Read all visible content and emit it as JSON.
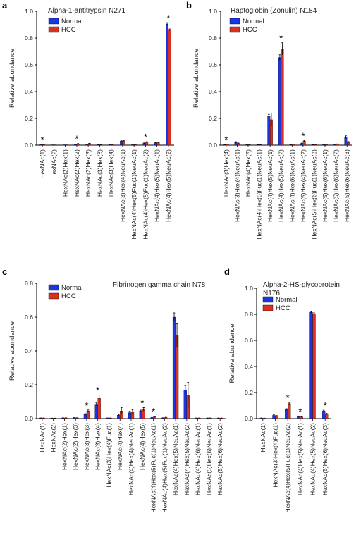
{
  "colors": {
    "normal": "#1a35e6",
    "hcc": "#d9301f",
    "axis": "#000000",
    "error": "#000000"
  },
  "chart_data": [
    {
      "letter": "a",
      "type": "bar",
      "title": [
        "Alpha-1-antitrypsin N271"
      ],
      "ylabel": "Relative abundance",
      "ylim": [
        0,
        1.0
      ],
      "yticks": [
        "0.0",
        "0.2",
        "0.4",
        "0.6",
        "0.8",
        "1.0"
      ],
      "legend": {
        "placement": "top-left",
        "entries": [
          "Normal",
          "HCC"
        ]
      },
      "categories": [
        "HexNAc(1)",
        "HexNAc(2)",
        "HexNAc(2)Hex(1)",
        "HexNAc(2)Hex(2)",
        "HexNAc(2)Hex(3)",
        "HexNAc(3)Hex(3)",
        "HexNAc(3)Hex(4)",
        "HexNAc(3)Hex(4)NeuAc(1)",
        "HexNAc(4)Hex(5)Fuc(1)NeuAc(1)",
        "HexNAc(4)Hex(5)Fuc(1)NeuAc(2)",
        "HexNAc(4)Hex(5)NeuAc(1)",
        "HexNAc(4)Hex(5)NeuAc(2)"
      ],
      "series": [
        {
          "name": "Normal",
          "values": [
            0.004,
            0.001,
            0.001,
            0.005,
            0.005,
            0.003,
            0.004,
            0.03,
            0.004,
            0.014,
            0.017,
            0.905
          ],
          "errors": [
            0.002,
            0,
            0,
            0.001,
            0.001,
            0.001,
            0.001,
            0.003,
            0.001,
            0.003,
            0.003,
            0.01
          ]
        },
        {
          "name": "HCC",
          "values": [
            0.004,
            0.001,
            0.001,
            0.01,
            0.012,
            0.003,
            0.004,
            0.034,
            0.004,
            0.022,
            0.02,
            0.862
          ],
          "errors": [
            0.002,
            0,
            0,
            0.002,
            0.002,
            0.001,
            0.001,
            0.004,
            0.001,
            0.004,
            0.003,
            0.006
          ]
        }
      ],
      "stars": [
        "HexNAc(1)",
        "HexNAc(2)Hex(2)",
        "HexNAc(4)Hex(5)Fuc(1)NeuAc(2)",
        "HexNAc(4)Hex(5)NeuAc(2)"
      ]
    },
    {
      "letter": "b",
      "type": "bar",
      "title": [
        "Haptoglobin (Zonulin) N184"
      ],
      "ylabel": "Relative abundance",
      "ylim": [
        0,
        1.0
      ],
      "yticks": [
        "0.0",
        "0.2",
        "0.4",
        "0.6",
        "0.8",
        "1.0"
      ],
      "legend": {
        "placement": "top-left",
        "entries": [
          "Normal",
          "HCC"
        ]
      },
      "categories": [
        "HexNAc(3)Hex(4)",
        "HexNAc(3)Hex(4)NeuAc(1)",
        "HexNAc(4)Hex(5)",
        "HexNAc(4)Hex(5)Fuc(1)NeuAc(1)",
        "HexNAc(4)Hex(5)NeuAc(1)",
        "HexNAc(4)Hex(5)NeuAc(2)",
        "HexNAc(4)Hex(6)NeuAc(1)",
        "HexNAc(5)Hex(4)NeuAc(2)",
        "HexNAc(5)Hex(6)Fuc(1)NeuAc(3)",
        "HexNAc(5)Hex(6)NeuAc(1)",
        "HexNAc(5)Hex(6)NeuAc(2)",
        "HexNAc(5)Hex(6)NeuAc(3)"
      ],
      "series": [
        {
          "name": "Normal",
          "values": [
            0.003,
            0.02,
            0.003,
            0.003,
            0.215,
            0.655,
            0.003,
            0.012,
            0.003,
            0.004,
            0.005,
            0.06
          ],
          "errors": [
            0.001,
            0.006,
            0.001,
            0.001,
            0.015,
            0.02,
            0.001,
            0.003,
            0.001,
            0.001,
            0.001,
            0.01
          ]
        },
        {
          "name": "HCC",
          "values": [
            0.006,
            0.012,
            0.003,
            0.003,
            0.19,
            0.72,
            0.006,
            0.03,
            0.004,
            0.005,
            0.007,
            0.022
          ],
          "errors": [
            0.002,
            0.004,
            0.001,
            0.001,
            0.05,
            0.045,
            0.002,
            0.005,
            0.001,
            0.001,
            0.002,
            0.005
          ]
        }
      ],
      "stars": [
        "HexNAc(3)Hex(4)",
        "HexNAc(4)Hex(5)NeuAc(2)",
        "HexNAc(5)Hex(4)NeuAc(2)"
      ]
    },
    {
      "letter": "c",
      "type": "bar",
      "title": [
        "Fibrinogen gamma chain N78"
      ],
      "ylabel": "Relative abundance",
      "ylim": [
        0,
        0.8
      ],
      "yticks": [
        "0.0",
        "0.2",
        "0.4",
        "0.6",
        "0.8"
      ],
      "legend": {
        "placement": "top-left",
        "entries": [
          "Normal",
          "HCC"
        ]
      },
      "categories": [
        "HexNAc(1)",
        "HexNAc(2)",
        "HexNAc(2)Hex(1)",
        "HexNAc(2)Hex(3)",
        "HexNAc(3)Hex(3)",
        "HexNAc(3)Hex(4)",
        "HexNAc(3)Hex(4)Fuc(1)",
        "HexNAc(4)Hex(4)",
        "HexNAc(4)Hex(4)NeuAc(1)",
        "HexNAc(4)Hex(5)",
        "HexNAc(4)Hex(5)Fuc(1)NeuAc(1)",
        "HexNAc(4)Hex(5)Fuc(1)NeuAc(2)",
        "HexNAc(4)Hex(5)NeuAc(1)",
        "HexNAc(4)Hex(5)NeuAc(2)",
        "HexNAc(4)Hex(6)NeuAc(1)",
        "HexNAc(5)Hex(6)NeuAc(1)",
        "HexNAc(5)Hex(6)NeuAc(2)"
      ],
      "series": [
        {
          "name": "Normal",
          "values": [
            0.003,
            0.002,
            0.004,
            0.005,
            0.025,
            0.085,
            0.003,
            0.02,
            0.035,
            0.045,
            0.005,
            0.004,
            0.6,
            0.17,
            0.003,
            0.003,
            0.003
          ],
          "errors": [
            0.001,
            0.001,
            0.001,
            0.001,
            0.004,
            0.008,
            0.001,
            0.003,
            0.008,
            0.005,
            0.002,
            0.001,
            0.025,
            0.025,
            0.001,
            0.001,
            0.001
          ]
        },
        {
          "name": "HCC",
          "values": [
            0.003,
            0.002,
            0.004,
            0.004,
            0.045,
            0.12,
            0.003,
            0.045,
            0.04,
            0.055,
            0.012,
            0.006,
            0.49,
            0.14,
            0.003,
            0.003,
            0.003
          ],
          "errors": [
            0.001,
            0.001,
            0.001,
            0.001,
            0.006,
            0.02,
            0.001,
            0.02,
            0.012,
            0.01,
            0.003,
            0.002,
            0.07,
            0.075,
            0.001,
            0.001,
            0.001
          ]
        }
      ],
      "stars": [
        "HexNAc(3)Hex(3)",
        "HexNAc(3)Hex(4)",
        "HexNAc(4)Hex(5)",
        "HexNAc(4)Hex(5)Fuc(1)NeuAc(1)"
      ]
    },
    {
      "letter": "d",
      "type": "bar",
      "title": [
        "Alpha-2-HS-glycoprotein",
        "N176"
      ],
      "ylabel": "Relative abundance",
      "ylim": [
        0,
        1.0
      ],
      "yticks": [
        "0.0",
        "0.2",
        "0.4",
        "0.6",
        "0.8",
        "1.0"
      ],
      "legend": {
        "placement": "top-left",
        "entries": [
          "Normal",
          "HCC"
        ]
      },
      "categories": [
        "HexNAc(1)",
        "HexNAc(3)Hex(4)Fuc(1)",
        "HexNAc(4)Hex(5)Fuc(1)NeuAc(2)",
        "HexNAc(4)Hex(5)NeuAc(1)",
        "HexNAc(4)Hex(5)NeuAc(2)",
        "HexNAc(5)Hex(6)NeuAc(3)"
      ],
      "series": [
        {
          "name": "Normal",
          "values": [
            0.004,
            0.025,
            0.07,
            0.015,
            0.815,
            0.058
          ],
          "errors": [
            0.001,
            0.004,
            0.006,
            0.003,
            0.005,
            0.006
          ]
        },
        {
          "name": "HCC",
          "values": [
            0.003,
            0.02,
            0.115,
            0.012,
            0.805,
            0.035
          ],
          "errors": [
            0.001,
            0.003,
            0.01,
            0.002,
            0.006,
            0.005
          ]
        }
      ],
      "stars": [
        "HexNAc(4)Hex(5)Fuc(1)NeuAc(2)",
        "HexNAc(4)Hex(5)NeuAc(1)",
        "HexNAc(5)Hex(6)NeuAc(3)"
      ]
    }
  ]
}
